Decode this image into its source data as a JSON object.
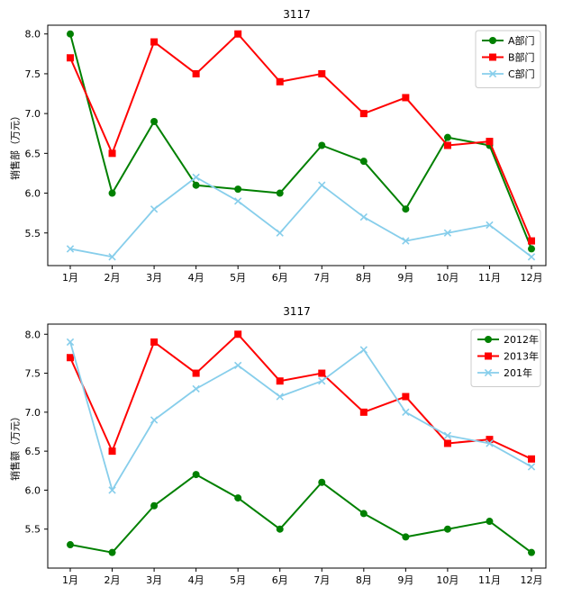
{
  "figure": {
    "background": "#ffffff",
    "text_color": "#000000",
    "legend_border_color": "#cccccc"
  },
  "chart_data": [
    {
      "type": "line",
      "title": "3117",
      "xlabel": "",
      "ylabel": "销售部（万元）",
      "grid": false,
      "legend_position": "upper right",
      "categories": [
        "1月",
        "2月",
        "3月",
        "4月",
        "5月",
        "6月",
        "7月",
        "8月",
        "9月",
        "10月",
        "11月",
        "12月"
      ],
      "ytick_labels": [
        "5.5",
        "6.0",
        "6.5",
        "7.0",
        "7.5",
        "8.0"
      ],
      "ylim": [
        5.09,
        8.11
      ],
      "series": [
        {
          "name": "A部门",
          "color": "#008000",
          "marker": "circle",
          "values": [
            8.0,
            6.0,
            6.9,
            6.1,
            6.05,
            6.0,
            6.6,
            6.4,
            5.8,
            6.7,
            6.6,
            5.3
          ]
        },
        {
          "name": "B部门",
          "color": "#ff0000",
          "marker": "square",
          "values": [
            7.7,
            6.5,
            7.9,
            7.5,
            8.0,
            7.4,
            7.5,
            7.0,
            7.2,
            6.6,
            6.65,
            5.4
          ]
        },
        {
          "name": "C部门",
          "color": "#87ceeb",
          "marker": "x",
          "values": [
            5.3,
            5.2,
            5.8,
            6.2,
            5.9,
            5.5,
            6.1,
            5.7,
            5.4,
            5.5,
            5.6,
            5.2
          ]
        }
      ]
    },
    {
      "type": "line",
      "title": "3117",
      "xlabel": "",
      "ylabel": "销售额（万元）",
      "grid": false,
      "legend_position": "upper right",
      "categories": [
        "1月",
        "2月",
        "3月",
        "4月",
        "5月",
        "6月",
        "7月",
        "8月",
        "9月",
        "10月",
        "11月",
        "12月"
      ],
      "ytick_labels": [
        "5.5",
        "6.0",
        "6.5",
        "7.0",
        "7.5",
        "8.0"
      ],
      "ylim": [
        5.0,
        8.13
      ],
      "series": [
        {
          "name": "2012年",
          "color": "#008000",
          "marker": "circle",
          "values": [
            5.3,
            5.2,
            5.8,
            6.2,
            5.9,
            5.5,
            6.1,
            5.7,
            5.4,
            5.5,
            5.6,
            5.2
          ]
        },
        {
          "name": "2013年",
          "color": "#ff0000",
          "marker": "square",
          "values": [
            7.7,
            6.5,
            7.9,
            7.5,
            8.0,
            7.4,
            7.5,
            7.0,
            7.2,
            6.6,
            6.65,
            6.4
          ]
        },
        {
          "name": "201年",
          "color": "#87ceeb",
          "marker": "x",
          "values": [
            7.9,
            6.0,
            6.9,
            7.3,
            7.6,
            7.2,
            7.4,
            7.8,
            7.0,
            6.7,
            6.6,
            6.3
          ]
        }
      ]
    }
  ]
}
